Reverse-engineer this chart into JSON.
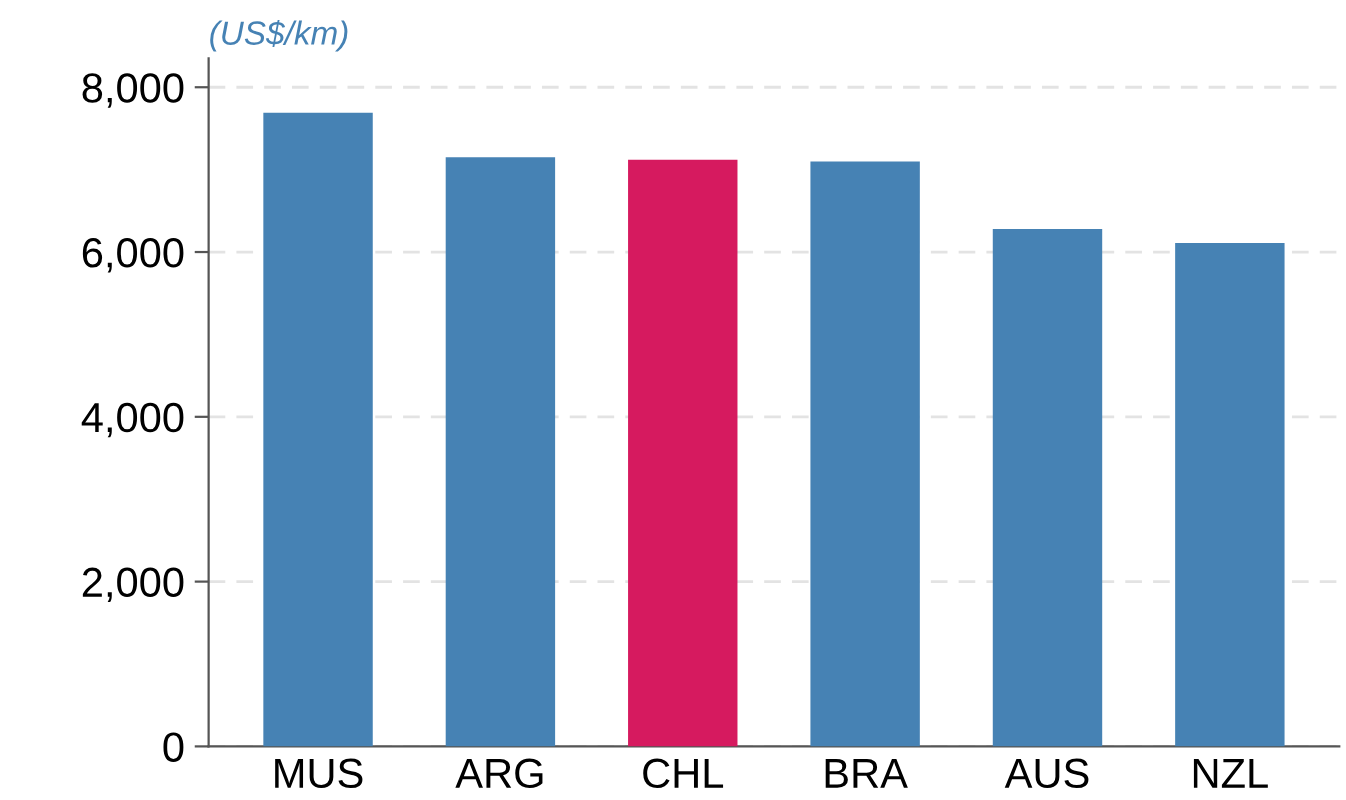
{
  "chart_data": {
    "type": "bar",
    "ylabel": "(US$/km)",
    "categories": [
      "MUS",
      "ARG",
      "CHL",
      "BRA",
      "AUS",
      "NZL"
    ],
    "values": [
      7690,
      7150,
      7120,
      7100,
      6280,
      6110
    ],
    "colors": [
      "#4682b4",
      "#4682b4",
      "#d61a5f",
      "#4682b4",
      "#4682b4",
      "#4682b4"
    ],
    "ylim": [
      0,
      8350
    ],
    "yticks": [
      {
        "value": 0,
        "label": "0"
      },
      {
        "value": 2000,
        "label": "2,000"
      },
      {
        "value": 4000,
        "label": "4,000"
      },
      {
        "value": 6000,
        "label": "6,000"
      },
      {
        "value": 8000,
        "label": "8,000"
      }
    ],
    "grid": "y",
    "legend": false
  }
}
